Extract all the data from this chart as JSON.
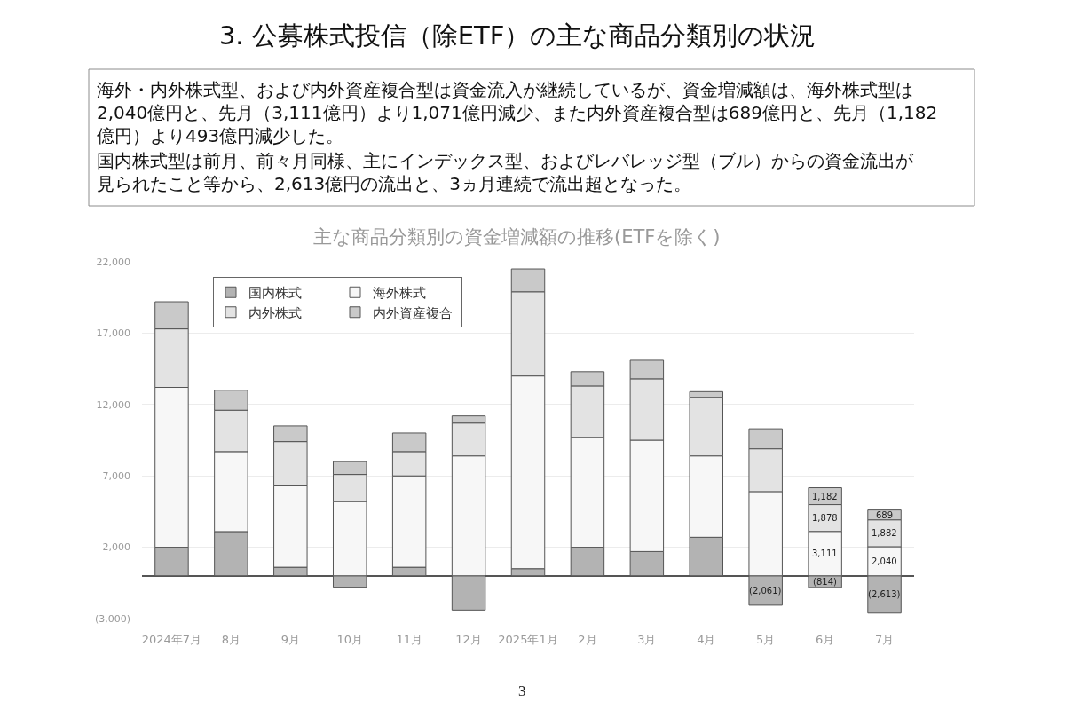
{
  "chart_data": {
    "type": "bar",
    "title": "3. 公募株式投信（除ETF）の主な商品分類別の状況",
    "subtitle": "主な商品分類別の資金増減額の推移(ETFを除く)",
    "annotations": [
      "海外・内外株式型、および内外資産複合型は資金流入が継続しているが、資金増減額は、海外株式型は2,040億円と、先月（3,111億円）より1,071億円減少、また内外資産複合型は689億円と、先月（1,182億円）より493億円減少した。",
      "国内株式型は前月、前々月同様、主にインデックス型、およびレバレッジ型（ブル）からの資金流出が見られたこと等から、2,613億円の流出と、3ヵ月連続で流出超となった。",
      "3"
    ],
    "categories": [
      "2024年7月",
      "8月",
      "9月",
      "10月",
      "11月",
      "12月",
      "2025年1月",
      "2月",
      "3月",
      "4月",
      "5月",
      "6月",
      "7月"
    ],
    "series": [
      {
        "name": "国内株式",
        "color": "#b3b3b3",
        "values": [
          2000,
          3100,
          600,
          -800,
          600,
          -2400,
          500,
          2000,
          1700,
          2700,
          -2061,
          -814,
          -2613
        ],
        "value_labels": [
          null,
          null,
          null,
          null,
          null,
          null,
          null,
          null,
          null,
          null,
          "(2,061)",
          "(814)",
          "(2,613)"
        ]
      },
      {
        "name": "海外株式",
        "color": "#f7f7f7",
        "values": [
          11200,
          5600,
          5700,
          5200,
          6400,
          8400,
          13500,
          7700,
          7800,
          5700,
          5900,
          3111,
          2040
        ],
        "value_labels": [
          null,
          null,
          null,
          null,
          null,
          null,
          null,
          null,
          null,
          null,
          null,
          "3,111",
          "2,040"
        ]
      },
      {
        "name": "内外株式",
        "color": "#e3e3e3",
        "values": [
          4100,
          2900,
          3100,
          1900,
          1700,
          2300,
          5900,
          3600,
          4300,
          4100,
          3000,
          1878,
          1882
        ],
        "value_labels": [
          null,
          null,
          null,
          null,
          null,
          null,
          null,
          null,
          null,
          null,
          null,
          "1,878",
          "1,882"
        ]
      },
      {
        "name": "内外資産複合",
        "color": "#c9c9c9",
        "values": [
          1900,
          1400,
          1100,
          900,
          1300,
          500,
          1600,
          1000,
          1300,
          400,
          1400,
          1182,
          689
        ],
        "value_labels": [
          null,
          null,
          null,
          null,
          null,
          null,
          null,
          null,
          null,
          null,
          null,
          "1,182",
          "689"
        ]
      }
    ],
    "stacked": true,
    "ylim": [
      -3000,
      22000
    ],
    "yticks": [
      {
        "value": -3000,
        "label": "(3,000)"
      },
      {
        "value": 2000,
        "label": "2,000"
      },
      {
        "value": 7000,
        "label": "7,000"
      },
      {
        "value": 12000,
        "label": "12,000"
      },
      {
        "value": 17000,
        "label": "17,000"
      },
      {
        "value": 22000,
        "label": "22,000"
      }
    ],
    "grid": "y",
    "legend": "top left"
  }
}
